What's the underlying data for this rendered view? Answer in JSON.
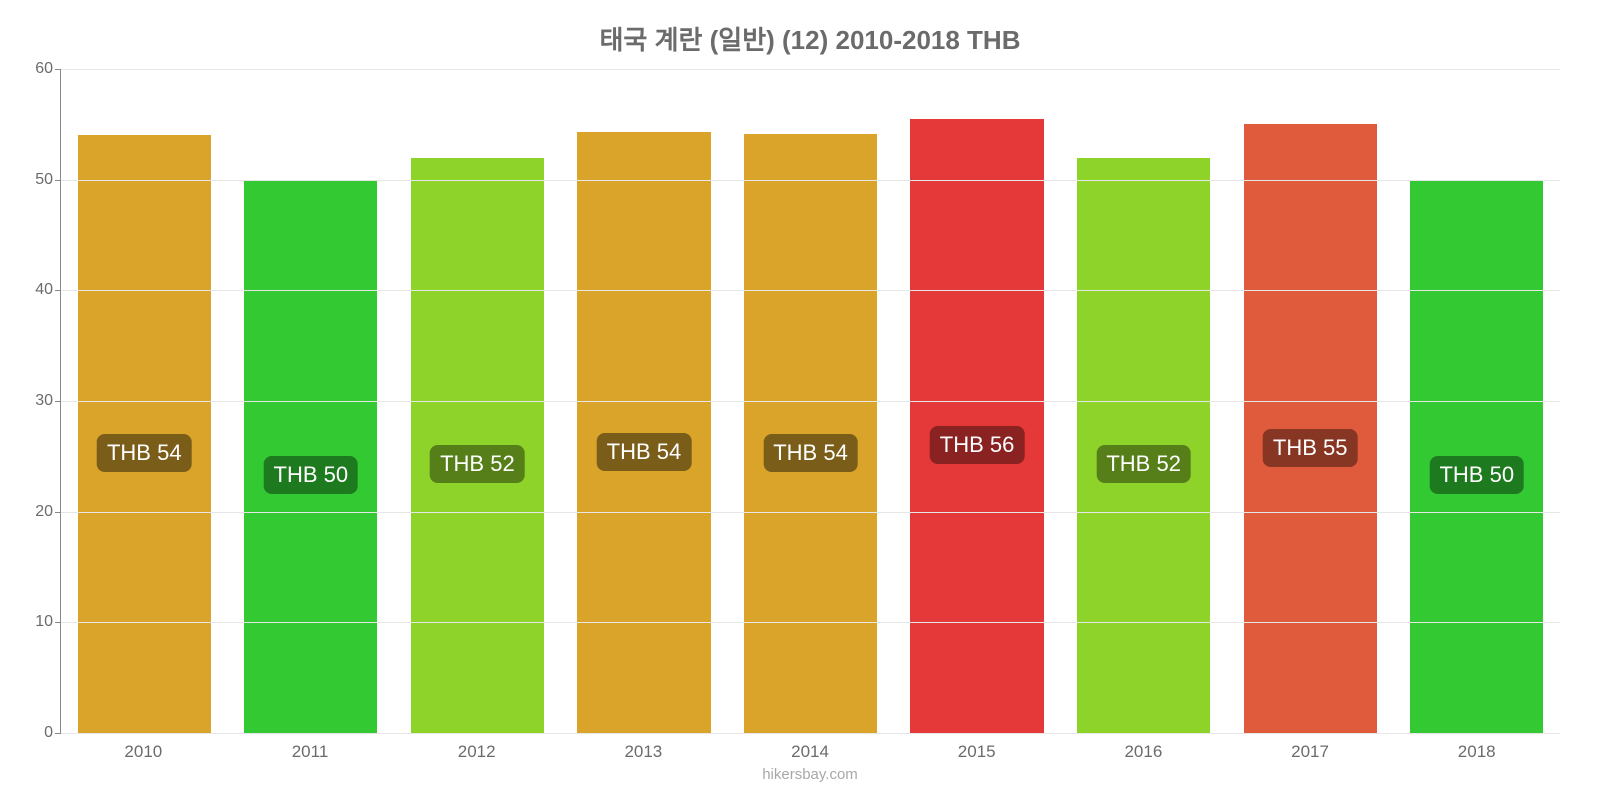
{
  "chart": {
    "type": "bar",
    "title": "태국 계란 (일반) (12) 2010-2018 THB",
    "title_fontsize": 26,
    "title_color": "#6b6b6b",
    "background_color": "#ffffff",
    "grid_color": "#e6e6e6",
    "axis_color": "#888888",
    "tick_label_color": "#6b6b6b",
    "tick_label_fontsize": 16,
    "bar_label_fontsize": 22,
    "bar_label_text_color": "#ffffff",
    "bar_label_radius": 8,
    "bar_width": 0.8,
    "ylim": [
      0,
      60
    ],
    "yticks": [
      0,
      10,
      20,
      30,
      40,
      50,
      60
    ],
    "categories": [
      "2010",
      "2011",
      "2012",
      "2013",
      "2014",
      "2015",
      "2016",
      "2017",
      "2018"
    ],
    "values": [
      54,
      50,
      52,
      54.3,
      54.1,
      55.5,
      52,
      55,
      50
    ],
    "value_labels": [
      "THB 54",
      "THB 50",
      "THB 52",
      "THB 54",
      "THB 54",
      "THB 56",
      "THB 52",
      "THB 55",
      "THB 50"
    ],
    "bar_colors": [
      "#d9a429",
      "#33c933",
      "#8dd32a",
      "#d9a429",
      "#d9a429",
      "#e53939",
      "#8dd32a",
      "#e05a3c",
      "#33c933"
    ],
    "label_bg_colors": [
      "#7a5d18",
      "#1e7a1e",
      "#567f19",
      "#7a5d18",
      "#7a5d18",
      "#8a2222",
      "#567f19",
      "#873624",
      "#1e7a1e"
    ],
    "footer": "hikersbay.com",
    "footer_color": "#a8a8a8",
    "footer_fontsize": 15
  }
}
